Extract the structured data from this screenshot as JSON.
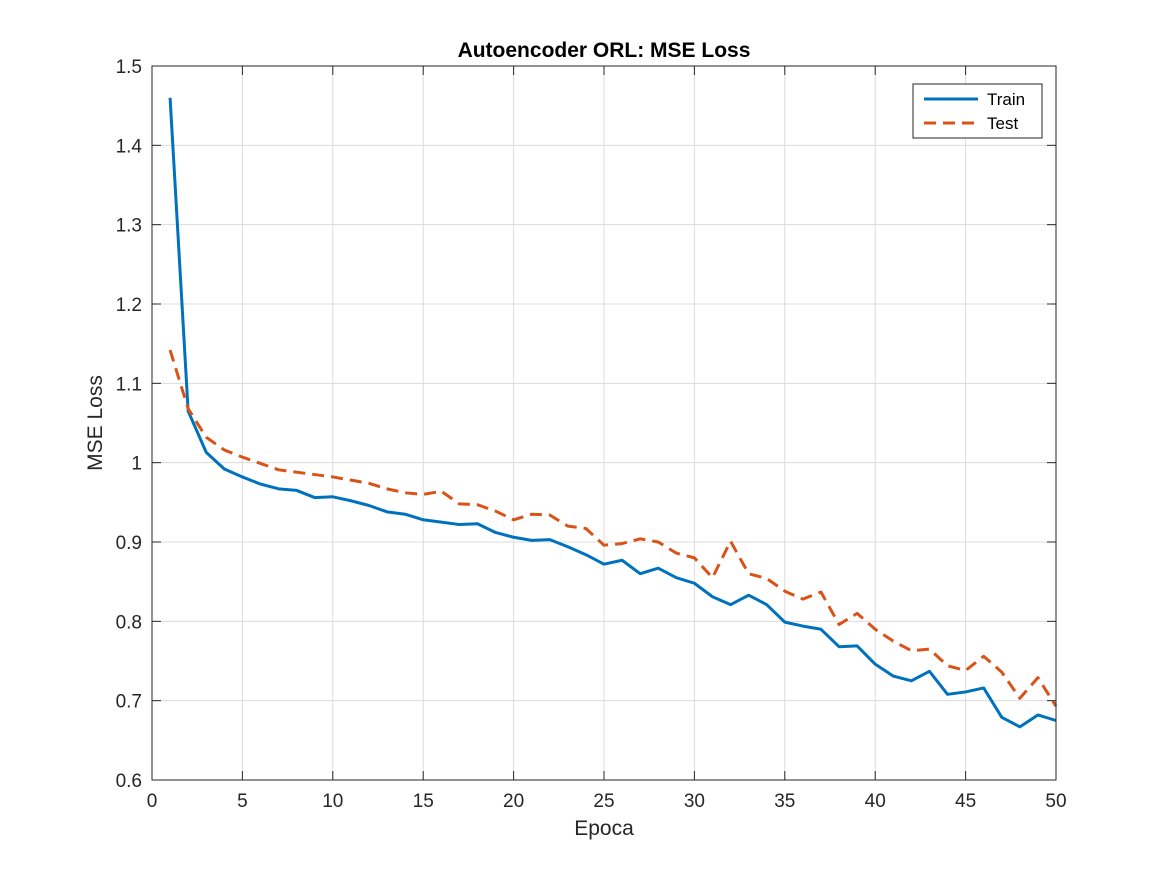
{
  "chart_data": {
    "type": "line",
    "title": "Autoencoder ORL: MSE Loss",
    "xlabel": "Epoca",
    "ylabel": "MSE Loss",
    "xlim": [
      0,
      50
    ],
    "ylim": [
      0.6,
      1.5
    ],
    "xticks": [
      "0",
      "5",
      "10",
      "15",
      "20",
      "25",
      "30",
      "35",
      "40",
      "45",
      "50"
    ],
    "yticks": [
      "0.6",
      "0.7",
      "0.8",
      "0.9",
      "1",
      "1.1",
      "1.2",
      "1.3",
      "1.4",
      "1.5"
    ],
    "grid": true,
    "legend_position": "top-right",
    "x": [
      1,
      2,
      3,
      4,
      5,
      6,
      7,
      8,
      9,
      10,
      11,
      12,
      13,
      14,
      15,
      16,
      17,
      18,
      19,
      20,
      21,
      22,
      23,
      24,
      25,
      26,
      27,
      28,
      29,
      30,
      31,
      32,
      33,
      34,
      35,
      36,
      37,
      38,
      39,
      40,
      41,
      42,
      43,
      44,
      45,
      46,
      47,
      48,
      49,
      50
    ],
    "series": [
      {
        "name": "Train",
        "color": "#0072BD",
        "style": "solid",
        "values": [
          1.46,
          1.065,
          1.013,
          0.992,
          0.982,
          0.973,
          0.967,
          0.965,
          0.956,
          0.957,
          0.952,
          0.946,
          0.938,
          0.935,
          0.928,
          0.925,
          0.922,
          0.923,
          0.912,
          0.906,
          0.902,
          0.903,
          0.894,
          0.884,
          0.872,
          0.877,
          0.86,
          0.867,
          0.855,
          0.848,
          0.831,
          0.821,
          0.833,
          0.821,
          0.799,
          0.794,
          0.79,
          0.768,
          0.769,
          0.746,
          0.731,
          0.725,
          0.737,
          0.708,
          0.711,
          0.716,
          0.679,
          0.667,
          0.682,
          0.675
        ]
      },
      {
        "name": "Test",
        "color": "#D95319",
        "style": "dashed",
        "values": [
          1.142,
          1.068,
          1.032,
          1.016,
          1.007,
          0.999,
          0.991,
          0.988,
          0.985,
          0.982,
          0.978,
          0.974,
          0.967,
          0.962,
          0.96,
          0.964,
          0.948,
          0.947,
          0.939,
          0.928,
          0.935,
          0.934,
          0.92,
          0.917,
          0.896,
          0.898,
          0.904,
          0.9,
          0.886,
          0.88,
          0.855,
          0.901,
          0.86,
          0.854,
          0.838,
          0.828,
          0.837,
          0.796,
          0.81,
          0.79,
          0.775,
          0.763,
          0.765,
          0.744,
          0.738,
          0.756,
          0.736,
          0.703,
          0.729,
          0.693
        ]
      }
    ]
  }
}
